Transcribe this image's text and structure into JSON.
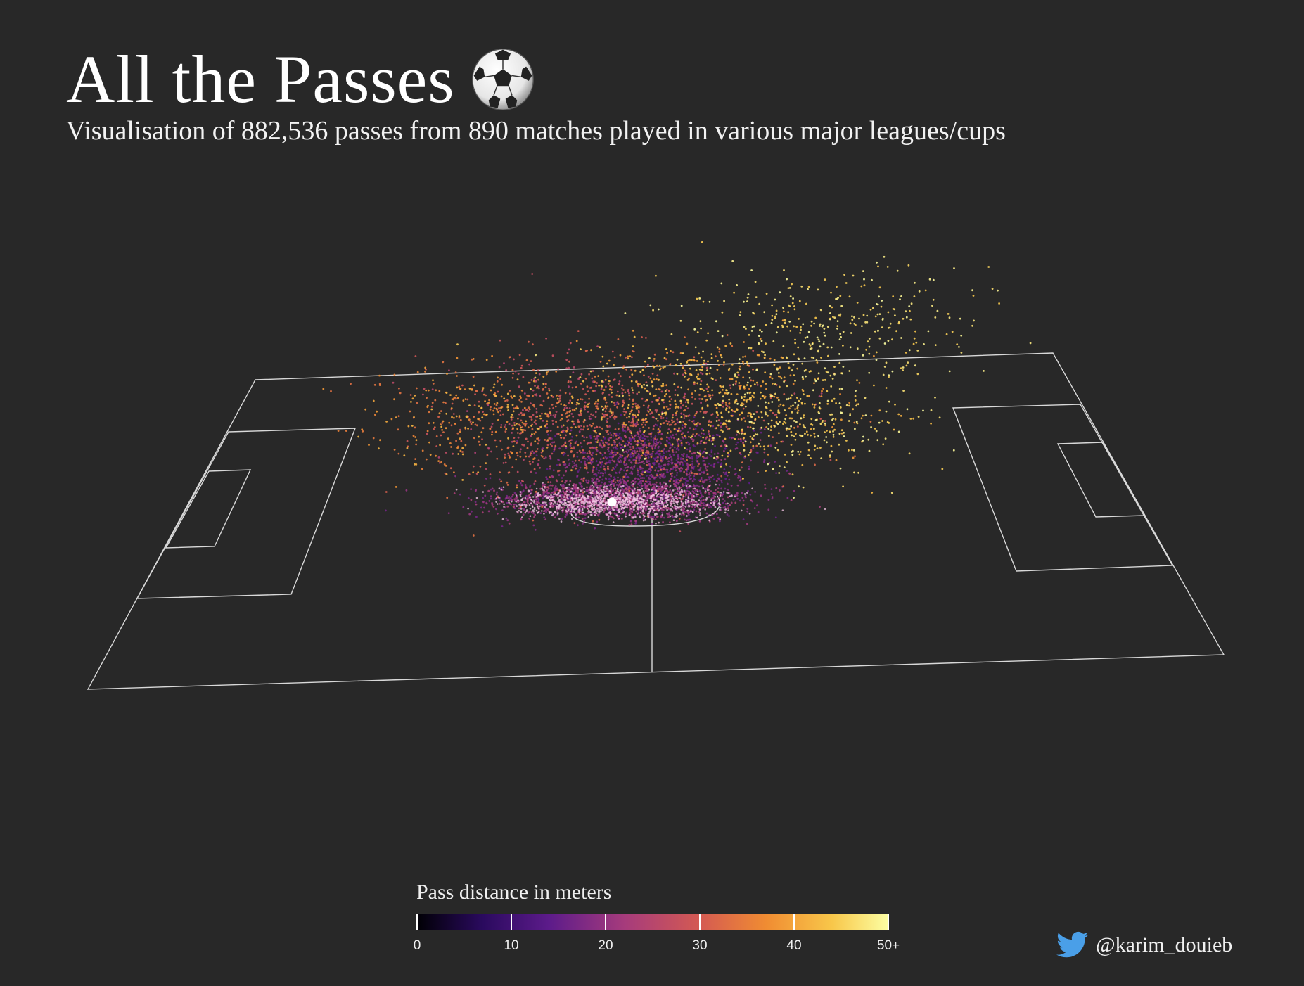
{
  "header": {
    "title": "All the Passes",
    "subtitle": "Visualisation of 882,536 passes from 890 matches played in various major leagues/cups"
  },
  "legend": {
    "title": "Pass distance in meters",
    "ticks": [
      "0",
      "10",
      "20",
      "30",
      "40",
      "50+"
    ]
  },
  "credit": {
    "handle": "@karim_douieb"
  },
  "colors": {
    "background": "#282828",
    "pitch_lines": "#d9d9d9",
    "twitter_blue": "#4a9fe8",
    "colorscale": [
      "#000004",
      "#2a0a5e",
      "#5c1b8a",
      "#a63b7c",
      "#d45a52",
      "#f08c32",
      "#f8c74a",
      "#fcffa4"
    ]
  },
  "icons": {
    "title_icon": "soccer-ball-icon",
    "credit_icon": "twitter-bird-icon"
  },
  "chart_data": {
    "type": "scatter",
    "subtype": "3d-scatter-over-football-pitch",
    "encoding": "Each dot is the end position of a pass starting from the centre spot; height indicates pass trajectory; colour encodes pass distance in meters",
    "colorbar": {
      "min": 0,
      "max": 50,
      "label": "Pass distance in meters",
      "tick_values": [
        0,
        10,
        20,
        30,
        40,
        50
      ]
    },
    "summary": {
      "passes": 882536,
      "matches": 890
    },
    "distribution": [
      {
        "distance_range_m": "0-10",
        "density": "high",
        "direction": "around centre spot"
      },
      {
        "distance_range_m": "10-20",
        "density": "very high",
        "direction": "backward and sideways"
      },
      {
        "distance_range_m": "20-30",
        "density": "medium",
        "direction": "backward and wide"
      },
      {
        "distance_range_m": "30-40",
        "density": "medium",
        "direction": "forward, right side"
      },
      {
        "distance_range_m": "40-50+",
        "density": "low",
        "direction": "long forward passes toward right goal"
      }
    ]
  }
}
